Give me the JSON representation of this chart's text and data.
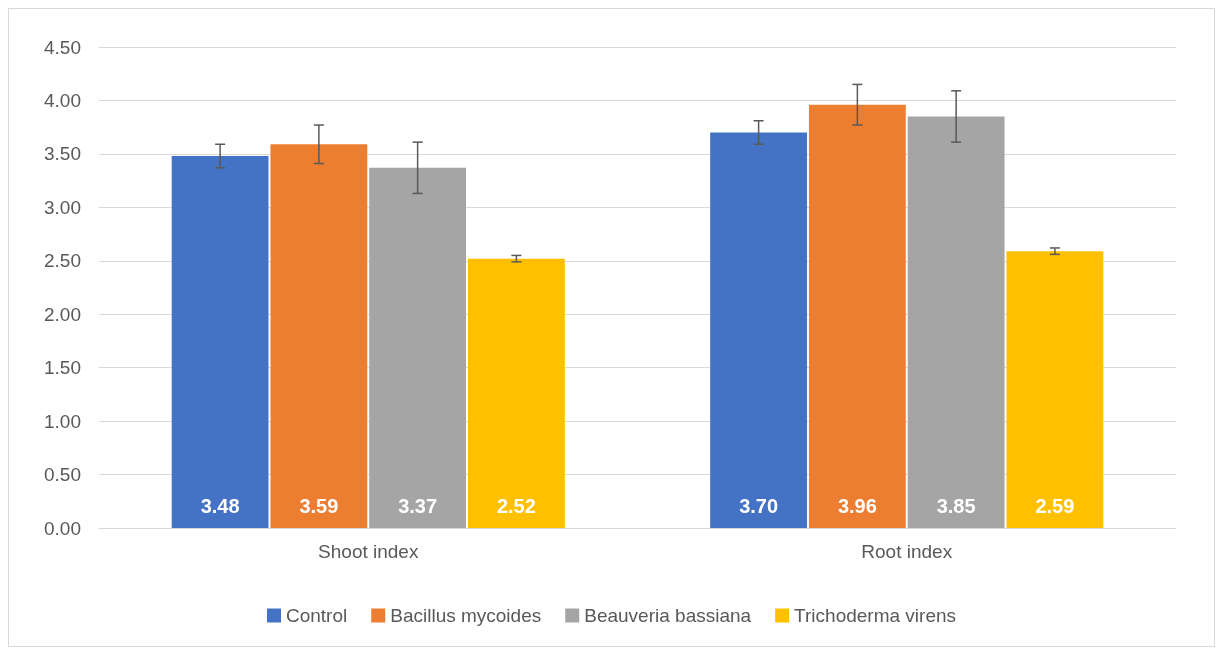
{
  "chart_data": {
    "type": "bar",
    "categories": [
      "Shoot index",
      "Root index"
    ],
    "series": [
      {
        "name": "Control",
        "color": "#4472c4",
        "values": [
          3.48,
          3.7
        ],
        "value_labels": [
          "3.48",
          "3.70"
        ],
        "errors": [
          0.11,
          0.11
        ]
      },
      {
        "name": "Bacillus mycoides",
        "color": "#ed7d31",
        "values": [
          3.59,
          3.96
        ],
        "value_labels": [
          "3.59",
          "3.96"
        ],
        "errors": [
          0.18,
          0.19
        ]
      },
      {
        "name": "Beauveria bassiana",
        "color": "#a5a5a5",
        "values": [
          3.37,
          3.85
        ],
        "value_labels": [
          "3.37",
          "3.85"
        ],
        "errors": [
          0.24,
          0.24
        ]
      },
      {
        "name": "Trichoderma virens",
        "color": "#ffc000",
        "values": [
          2.52,
          2.59
        ],
        "value_labels": [
          "2.52",
          "2.59"
        ],
        "errors": [
          0.03,
          0.03
        ]
      }
    ],
    "ylim": [
      0,
      4.5
    ],
    "yticks": [
      {
        "value": 0,
        "label": "0.00"
      },
      {
        "value": 0.5,
        "label": "0.50"
      },
      {
        "value": 1,
        "label": "1.00"
      },
      {
        "value": 1.5,
        "label": "1.50"
      },
      {
        "value": 2,
        "label": "2.00"
      },
      {
        "value": 2.5,
        "label": "2.50"
      },
      {
        "value": 3,
        "label": "3.00"
      },
      {
        "value": 3.5,
        "label": "3.50"
      },
      {
        "value": 4,
        "label": "4.00"
      },
      {
        "value": 4.5,
        "label": "4.50"
      }
    ],
    "grid": "y",
    "legend": "bottom"
  }
}
